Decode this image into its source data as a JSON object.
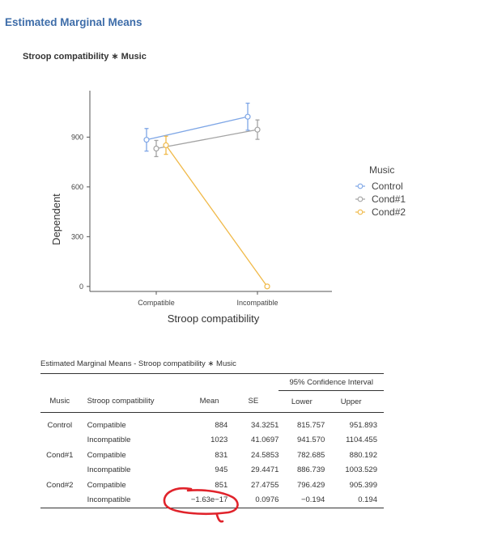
{
  "section_title": "Estimated Marginal Means",
  "plot_title": "Stroop compatibility ∗ Music",
  "chart_data": {
    "type": "line",
    "categories": [
      "Compatible",
      "Incompatible"
    ],
    "xlabel": "Stroop compatibility",
    "ylabel": "Dependent",
    "yticks": [
      0,
      300,
      600,
      900
    ],
    "ylim": [
      -30,
      1180
    ],
    "legend_title": "Music",
    "legend_position": "right",
    "series": [
      {
        "name": "Control",
        "color": "#7ea6e6",
        "values": [
          884,
          1023
        ],
        "lower": [
          815.757,
          941.57
        ],
        "upper": [
          951.893,
          1104.455
        ]
      },
      {
        "name": "Cond#1",
        "color": "#a3a3a3",
        "values": [
          831,
          945
        ],
        "lower": [
          782.685,
          886.739
        ],
        "upper": [
          880.192,
          1003.529
        ]
      },
      {
        "name": "Cond#2",
        "color": "#f0b948",
        "values": [
          851,
          0
        ],
        "lower": [
          796.429,
          -0.194
        ],
        "upper": [
          905.399,
          0.194
        ]
      }
    ]
  },
  "table": {
    "title": "Estimated Marginal Means - Stroop compatibility ∗ Music",
    "ci_header": "95% Confidence Interval",
    "headers": {
      "music": "Music",
      "stroop": "Stroop compatibility",
      "mean": "Mean",
      "se": "SE",
      "lower": "Lower",
      "upper": "Upper"
    },
    "rows": [
      {
        "music": "Control",
        "stroop": "Compatible",
        "mean": "884",
        "se": "34.3251",
        "lower": "815.757",
        "upper": "951.893"
      },
      {
        "music": "",
        "stroop": "Incompatible",
        "mean": "1023",
        "se": "41.0697",
        "lower": "941.570",
        "upper": "1104.455"
      },
      {
        "music": "Cond#1",
        "stroop": "Compatible",
        "mean": "831",
        "se": "24.5853",
        "lower": "782.685",
        "upper": "880.192"
      },
      {
        "music": "",
        "stroop": "Incompatible",
        "mean": "945",
        "se": "29.4471",
        "lower": "886.739",
        "upper": "1003.529"
      },
      {
        "music": "Cond#2",
        "stroop": "Compatible",
        "mean": "851",
        "se": "27.4755",
        "lower": "796.429",
        "upper": "905.399"
      },
      {
        "music": "",
        "stroop": "Incompatible",
        "mean": "−1.63e−17",
        "se": "0.0976",
        "lower": "−0.194",
        "upper": "0.194"
      }
    ]
  },
  "annotation_color": "#e0232b"
}
